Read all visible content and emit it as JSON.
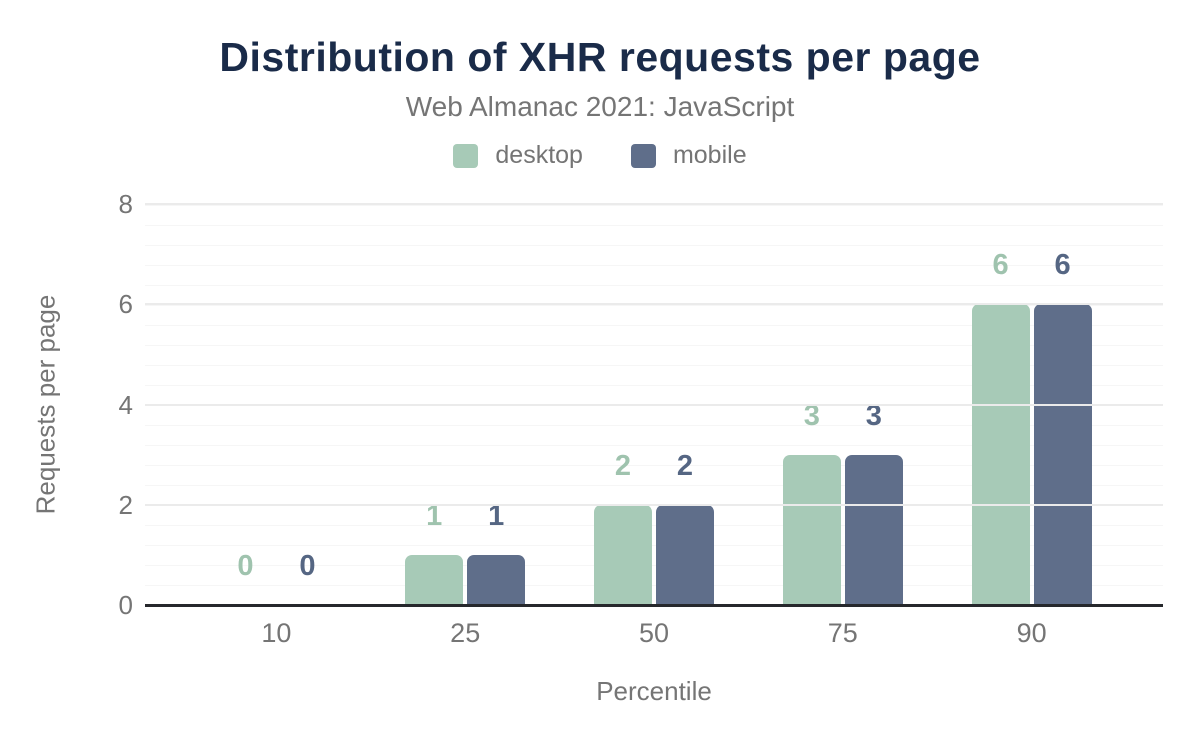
{
  "figure": {
    "title": "Distribution of XHR requests per page",
    "subtitle": "Web Almanac 2021: JavaScript"
  },
  "colors": {
    "title": "#1a2b49",
    "muted_text": "#757575",
    "axis_line": "#26282c",
    "grid_major": "#ebebeb",
    "grid_minor": "#f6f6f6"
  },
  "chart_data": {
    "type": "bar",
    "title": "Distribution of XHR requests per page",
    "subtitle": "Web Almanac 2021: JavaScript",
    "categories": [
      "10",
      "25",
      "50",
      "75",
      "90"
    ],
    "series": [
      {
        "name": "desktop",
        "color": "#a7cab7",
        "label_color": "#9fc3ae",
        "values": [
          0,
          1,
          2,
          3,
          6
        ]
      },
      {
        "name": "mobile",
        "color": "#5f6e8a",
        "label_color": "#556683",
        "values": [
          0,
          1,
          2,
          3,
          6
        ]
      }
    ],
    "xlabel": "Percentile",
    "ylabel": "Requests per page",
    "ylim": [
      0,
      8
    ],
    "yticks": [
      0,
      2,
      4,
      6,
      8
    ],
    "y_minor_step": 0.4,
    "grid": true,
    "data_labels": true,
    "legend_position": "top"
  }
}
